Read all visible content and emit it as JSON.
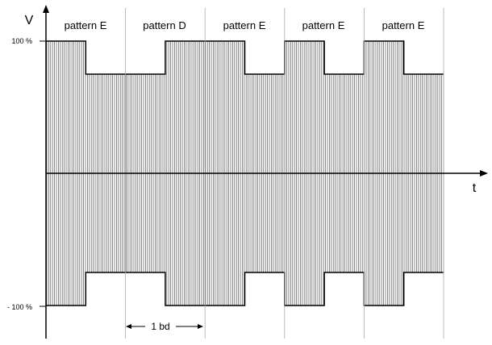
{
  "axes": {
    "y_label": "V",
    "x_label": "t",
    "y_ticks": {
      "top": "100 %",
      "bottom": "- 100 %"
    }
  },
  "segments": [
    {
      "label": "pattern E",
      "level": "high-then-low"
    },
    {
      "label": "pattern D",
      "level": "low-then-high"
    },
    {
      "label": "pattern E",
      "level": "high-then-low"
    },
    {
      "label": "pattern E",
      "level": "high-then-low"
    },
    {
      "label": "pattern E",
      "level": "high-then-low"
    }
  ],
  "dimension": {
    "label": "1 bd"
  },
  "levels": {
    "full_percent": 100,
    "reduced_percent": 75
  }
}
